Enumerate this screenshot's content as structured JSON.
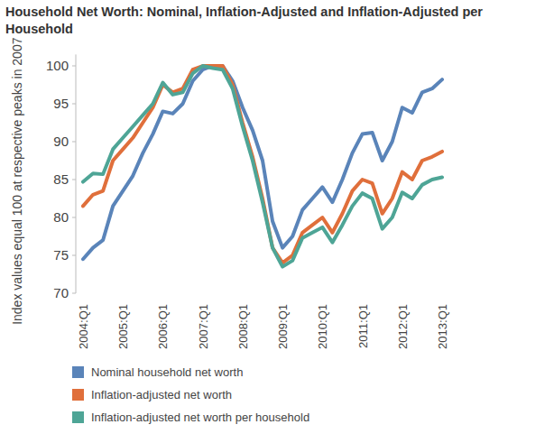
{
  "chart_data": {
    "type": "line",
    "title": "Household Net Worth: Nominal, Inflation-Adjusted and Inflation-Adjusted per Household",
    "y_label": "Index values equal 100 at respective peaks in 2007",
    "categories": [
      "2004:Q1",
      null,
      null,
      null,
      "2005:Q1",
      null,
      null,
      null,
      "2006:Q1",
      null,
      null,
      null,
      "2007:Q1",
      null,
      null,
      null,
      "2008:Q1",
      null,
      null,
      null,
      "2009:Q1",
      null,
      null,
      null,
      "2010:Q1",
      null,
      null,
      null,
      "2011:Q1",
      null,
      null,
      null,
      "2012:Q1",
      null,
      null,
      null,
      "2013:Q1"
    ],
    "series": [
      {
        "name": "Nominal household net worth",
        "color": "#5a84b9",
        "values": [
          74.5,
          76,
          77,
          81.5,
          83.5,
          85.5,
          88.5,
          91,
          94,
          93.7,
          95,
          98,
          99.5,
          100,
          100,
          98,
          94.5,
          91.5,
          87.5,
          79.5,
          76,
          77.5,
          81,
          82.5,
          84,
          82,
          85,
          88.5,
          91,
          91.2,
          87.5,
          90,
          94.5,
          93.8,
          96.5,
          97,
          98.2
        ]
      },
      {
        "name": "Inflation-adjusted net worth",
        "color": "#e06f3b",
        "values": [
          81.5,
          83,
          83.5,
          87.5,
          89,
          90.5,
          92.5,
          94.5,
          97.5,
          96.5,
          97,
          99.5,
          100,
          100,
          100,
          97.5,
          92.5,
          88,
          82.5,
          76,
          74,
          75,
          78,
          79,
          80,
          78,
          80.5,
          83.5,
          85,
          84.5,
          80.5,
          82.5,
          86,
          85,
          87.5,
          88,
          88.7
        ]
      },
      {
        "name": "Inflation-adjusted net worth per household",
        "color": "#4ea596",
        "values": [
          84.7,
          85.8,
          85.7,
          89,
          90.5,
          92,
          93.5,
          95,
          97.8,
          96.2,
          96.5,
          99,
          100,
          99.7,
          99.5,
          97,
          92,
          87.5,
          82,
          76,
          73.5,
          74.3,
          77.3,
          78,
          78.7,
          76.7,
          79,
          81.5,
          83.2,
          82.5,
          78.5,
          80,
          83.3,
          82.5,
          84.3,
          85,
          85.3
        ]
      }
    ],
    "ylim": [
      70,
      101.5
    ],
    "yticks": [
      70,
      75,
      80,
      85,
      90,
      95,
      100
    ],
    "grid": false,
    "legend": "bottom"
  }
}
